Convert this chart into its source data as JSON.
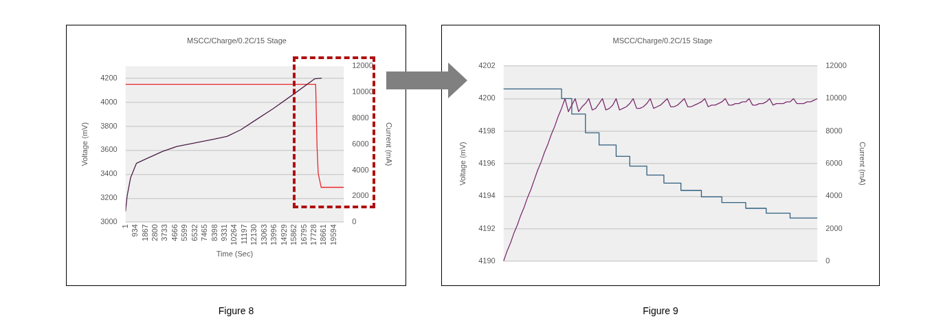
{
  "chart_data": [
    {
      "type": "line",
      "title": "MSCC/Charge/0.2C/15 Stage",
      "xlabel": "Time (Sec)",
      "ylabel": "Voltage (mV)",
      "y2label": "Current (mA)",
      "annotations": [
        "Figure 8"
      ],
      "xlim": [
        1,
        20527
      ],
      "xticks": [
        1,
        934,
        1867,
        2800,
        3733,
        4666,
        5599,
        6532,
        7465,
        8398,
        9331,
        10264,
        11197,
        12130,
        13063,
        13996,
        14929,
        15862,
        16795,
        17728,
        18661,
        19594
      ],
      "ylim": [
        3000,
        4300
      ],
      "yticks": [
        3000,
        3200,
        3400,
        3600,
        3800,
        4000,
        4200
      ],
      "y2lim": [
        0,
        12000
      ],
      "y2ticks": [
        0,
        2000,
        4000,
        6000,
        8000,
        10000,
        12000
      ],
      "grid": "y",
      "series": [
        {
          "color": "#4a1f45",
          "x": [
            1,
            150,
            474,
            1018,
            1990,
            3500,
            4795,
            6525,
            8250,
            9545,
            10840,
            12135,
            13865,
            15860,
            17800,
            18450
          ],
          "values": [
            3090,
            3220,
            3370,
            3490,
            3530,
            3590,
            3630,
            3660,
            3690,
            3715,
            3770,
            3845,
            3945,
            4070,
            4195,
            4200
          ]
        },
        {
          "color": "#e8252a",
          "axis": "y2",
          "x": [
            1,
            17880,
            18010,
            18120,
            18400,
            20527
          ],
          "values": [
            10600,
            10600,
            5800,
            3750,
            2680,
            2680
          ]
        }
      ]
    },
    {
      "type": "line",
      "title": "MSCC/Charge/0.2C/15 Stage",
      "ylabel": "Voltage (mV)",
      "y2label": "Current (mA)",
      "annotations": [
        "Figure 9"
      ],
      "categories": [
        null,
        null,
        null,
        null,
        null,
        null,
        null,
        null,
        null,
        null,
        null,
        null,
        null,
        null,
        null,
        null,
        null,
        null,
        null,
        null,
        null,
        null,
        null,
        null,
        null,
        null,
        null,
        null,
        null,
        null,
        null,
        null,
        null,
        null,
        null,
        null,
        null,
        null,
        null,
        null,
        null,
        null,
        null,
        null,
        null,
        null,
        null,
        null,
        null,
        null,
        null,
        null,
        null,
        null,
        null,
        null,
        null,
        null,
        null,
        null,
        null,
        null,
        null,
        null,
        null,
        null,
        null,
        null,
        null,
        null,
        null,
        null,
        null,
        null,
        null,
        null,
        null,
        null,
        null,
        null,
        null,
        null,
        null,
        null,
        null,
        null,
        null,
        null,
        null,
        null,
        null,
        null,
        null
      ],
      "ylim": [
        4190,
        4202
      ],
      "yticks": [
        4190,
        4192,
        4194,
        4196,
        4198,
        4200,
        4202
      ],
      "y2lim": [
        0,
        12000
      ],
      "y2ticks": [
        0,
        2000,
        4000,
        6000,
        8000,
        10000,
        12000
      ],
      "grid": "y",
      "series": [
        {
          "color": "#7b2d6e",
          "type": "line",
          "values": [
            4190,
            4190.6,
            4191.1,
            4191.7,
            4192.2,
            4192.8,
            4193.3,
            4193.9,
            4194.4,
            4195.0,
            4195.6,
            4196.1,
            4196.7,
            4197.2,
            4197.8,
            4198.3,
            4198.9,
            4199.4,
            4200,
            4199.2,
            4199.6,
            4200,
            4199.2,
            4199.5,
            4199.7,
            4200,
            4199.3,
            4199.4,
            4199.7,
            4200,
            4199.3,
            4199.4,
            4199.6,
            4200,
            4199.3,
            4199.4,
            4199.5,
            4199.7,
            4200,
            4199.4,
            4199.4,
            4199.5,
            4199.7,
            4200,
            4199.4,
            4199.5,
            4199.6,
            4199.8,
            4200,
            4199.5,
            4199.5,
            4199.6,
            4199.8,
            4200,
            4199.5,
            4199.5,
            4199.6,
            4199.7,
            4199.8,
            4200,
            4199.5,
            4199.6,
            4199.6,
            4199.7,
            4199.8,
            4200,
            4199.6,
            4199.6,
            4199.7,
            4199.7,
            4199.8,
            4199.8,
            4200,
            4199.6,
            4199.6,
            4199.7,
            4199.7,
            4199.8,
            4200,
            4199.6,
            4199.7,
            4199.7,
            4199.7,
            4199.8,
            4199.8,
            4200,
            4199.7,
            4199.7,
            4199.7,
            4199.8,
            4199.8,
            4199.9,
            4200
          ]
        },
        {
          "color": "#2e5f80",
          "type": "step",
          "axis": "y2",
          "values": [
            10600,
            10600,
            10600,
            10600,
            10600,
            10600,
            10600,
            10600,
            10600,
            10600,
            10600,
            10600,
            10600,
            10600,
            10600,
            10600,
            10600,
            10600,
            10000,
            10000,
            10000,
            9050,
            9050,
            9050,
            9050,
            7900,
            7900,
            7900,
            7900,
            7150,
            7150,
            7150,
            7150,
            7150,
            6450,
            6450,
            6450,
            6450,
            5850,
            5850,
            5850,
            5850,
            5850,
            5300,
            5300,
            5300,
            5300,
            5300,
            4800,
            4800,
            4800,
            4800,
            4800,
            4350,
            4350,
            4350,
            4350,
            4350,
            4350,
            3950,
            3950,
            3950,
            3950,
            3950,
            3950,
            3600,
            3600,
            3600,
            3600,
            3600,
            3600,
            3600,
            3250,
            3250,
            3250,
            3250,
            3250,
            3250,
            2950,
            2950,
            2950,
            2950,
            2950,
            2950,
            2950,
            2650,
            2650,
            2650,
            2650,
            2650,
            2650,
            2650,
            2650
          ]
        }
      ]
    }
  ]
}
